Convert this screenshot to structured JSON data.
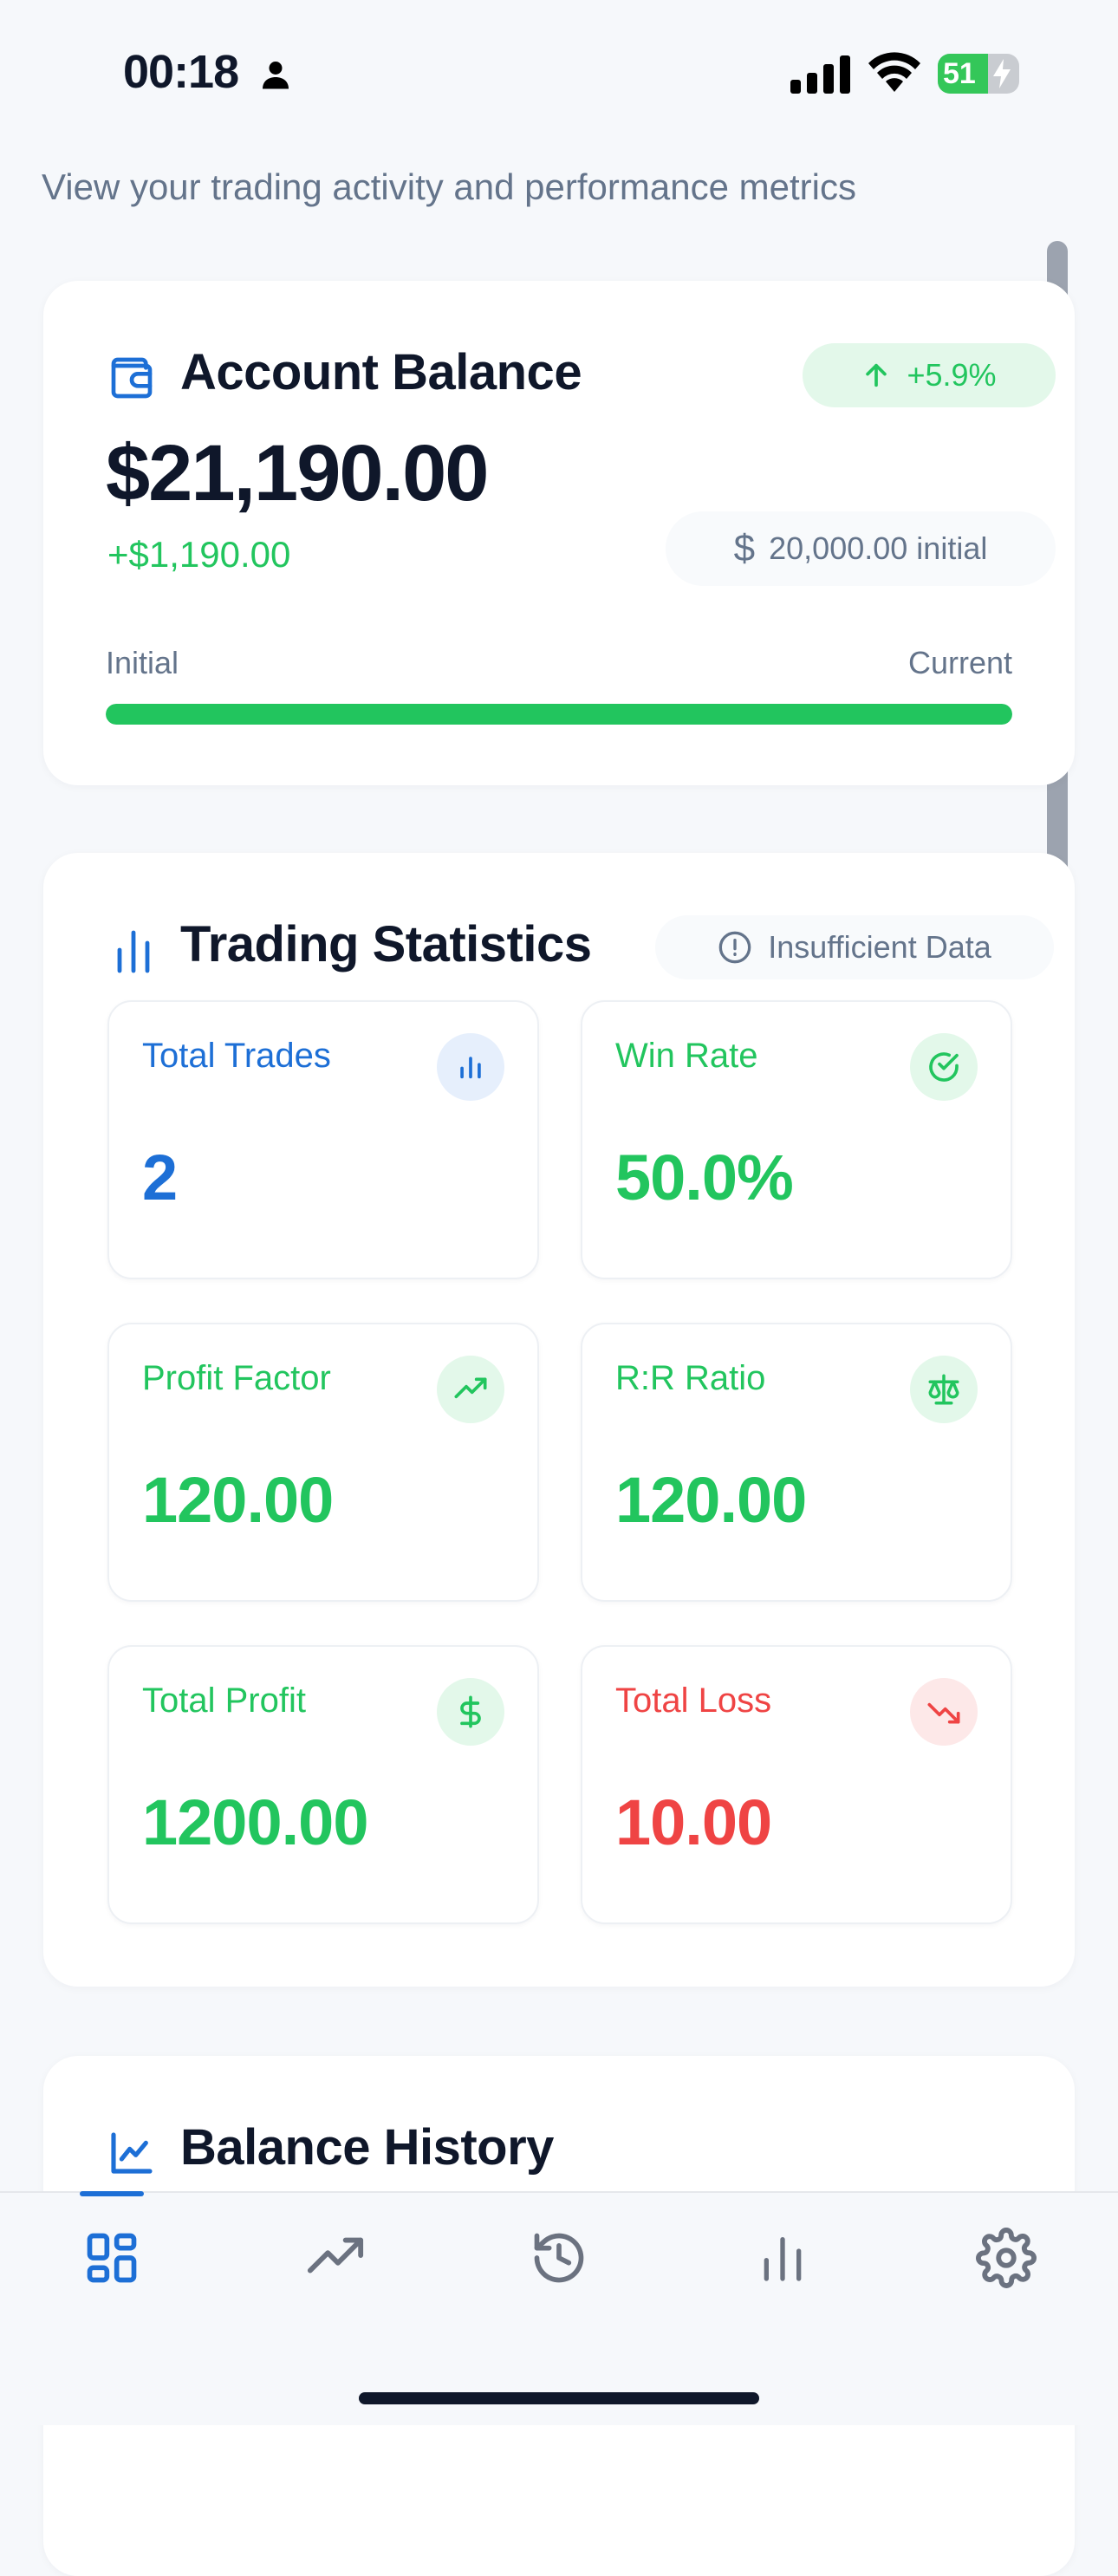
{
  "status_bar": {
    "time": "00:18",
    "battery": "51",
    "icons": [
      "person-icon",
      "signal-icon",
      "wifi-icon",
      "battery-icon"
    ]
  },
  "header": {
    "subtitle": "View your trading activity and performance metrics"
  },
  "balance_card": {
    "title": "Account Balance",
    "change_pct": "+5.9%",
    "balance": "$21,190.00",
    "delta": "+$1,190.00",
    "initial_amount": "20,000.00 initial",
    "initial_currency_symbol": "$",
    "progress_label_left": "Initial",
    "progress_label_right": "Current",
    "progress_fraction": 1.0,
    "icon": "wallet-icon"
  },
  "stats_card": {
    "title": "Trading Statistics",
    "badge": "Insufficient Data",
    "icon": "bar-chart-icon",
    "tiles": [
      {
        "label": "Total Trades",
        "value": "2",
        "icon": "bar-chart-icon",
        "color": "#1d6fd6",
        "bg": "#e6effc"
      },
      {
        "label": "Win Rate",
        "value": "50.0%",
        "icon": "check-circle-icon",
        "color": "#22c55e",
        "bg": "#e3f8ea"
      },
      {
        "label": "Profit Factor",
        "value": "120.00",
        "icon": "trending-up-icon",
        "color": "#22c55e",
        "bg": "#e3f8ea"
      },
      {
        "label": "R:R Ratio",
        "value": "120.00",
        "icon": "scale-icon",
        "color": "#22c55e",
        "bg": "#e3f8ea"
      },
      {
        "label": "Total Profit",
        "value": "1200.00",
        "icon": "dollar-icon",
        "color": "#22c55e",
        "bg": "#e3f8ea"
      },
      {
        "label": "Total Loss",
        "value": "10.00",
        "icon": "trending-down-icon",
        "color": "#ef4444",
        "bg": "#fde8e8"
      }
    ]
  },
  "history_card": {
    "title": "Balance History",
    "icon": "line-chart-icon"
  },
  "tab_bar": {
    "tabs": [
      {
        "name": "dashboard",
        "icon": "grid-icon",
        "active": true
      },
      {
        "name": "performance",
        "icon": "trending-up-icon",
        "active": false
      },
      {
        "name": "history",
        "icon": "history-icon",
        "active": false
      },
      {
        "name": "statistics",
        "icon": "bar-chart-icon",
        "active": false
      },
      {
        "name": "settings",
        "icon": "gear-icon",
        "active": false
      }
    ]
  },
  "colors": {
    "accent_blue": "#1d6fd6",
    "positive_green": "#22c55e",
    "negative_red": "#ef4444",
    "muted_text": "#64748b"
  }
}
